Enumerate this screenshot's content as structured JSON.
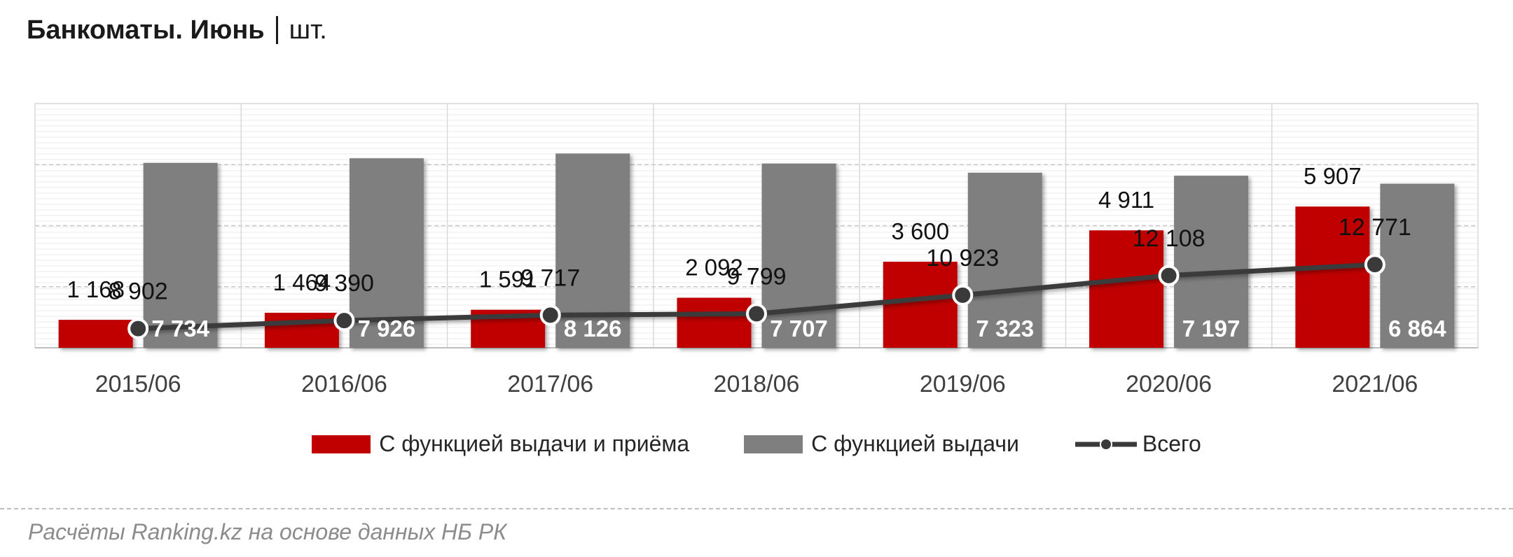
{
  "header": {
    "title": "Банкоматы. Июнь",
    "unit": "шт."
  },
  "source": "Расчёты Ranking.kz на основе данных НБ РК",
  "colors": {
    "red": "#c00000",
    "gray": "#7f7f7f",
    "line": "#3a3a3a"
  },
  "chart_data": {
    "type": "bar",
    "title": "Банкоматы. Июнь",
    "unit": "шт.",
    "categories": [
      "2015/06",
      "2016/06",
      "2017/06",
      "2018/06",
      "2019/06",
      "2020/06",
      "2021/06"
    ],
    "series": [
      {
        "name": "С функцией выдачи и приёма",
        "type": "bar",
        "color": "#c00000",
        "values": [
          1168,
          1464,
          1591,
          2092,
          3600,
          4911,
          5907
        ],
        "labels": [
          "1 168",
          "1 464",
          "1 591",
          "2 092",
          "3 600",
          "4 911",
          "5 907"
        ]
      },
      {
        "name": "С функцией выдачи",
        "type": "bar",
        "color": "#7f7f7f",
        "values": [
          7734,
          7926,
          8126,
          7707,
          7323,
          7197,
          6864
        ],
        "labels": [
          "7 734",
          "7 926",
          "8 126",
          "7 707",
          "7 323",
          "7 197",
          "6 864"
        ]
      },
      {
        "name": "Всего",
        "type": "line",
        "color": "#3a3a3a",
        "values": [
          8902,
          9390,
          9717,
          9799,
          10923,
          12108,
          12771
        ],
        "labels": [
          "8 902",
          "9 390",
          "9 717",
          "9 799",
          "10 923",
          "12 108",
          "12 771"
        ]
      }
    ],
    "bar_scale_max": 12000,
    "line_scale": [
      5000,
      20000
    ],
    "grid": true,
    "legend_position": "bottom"
  }
}
